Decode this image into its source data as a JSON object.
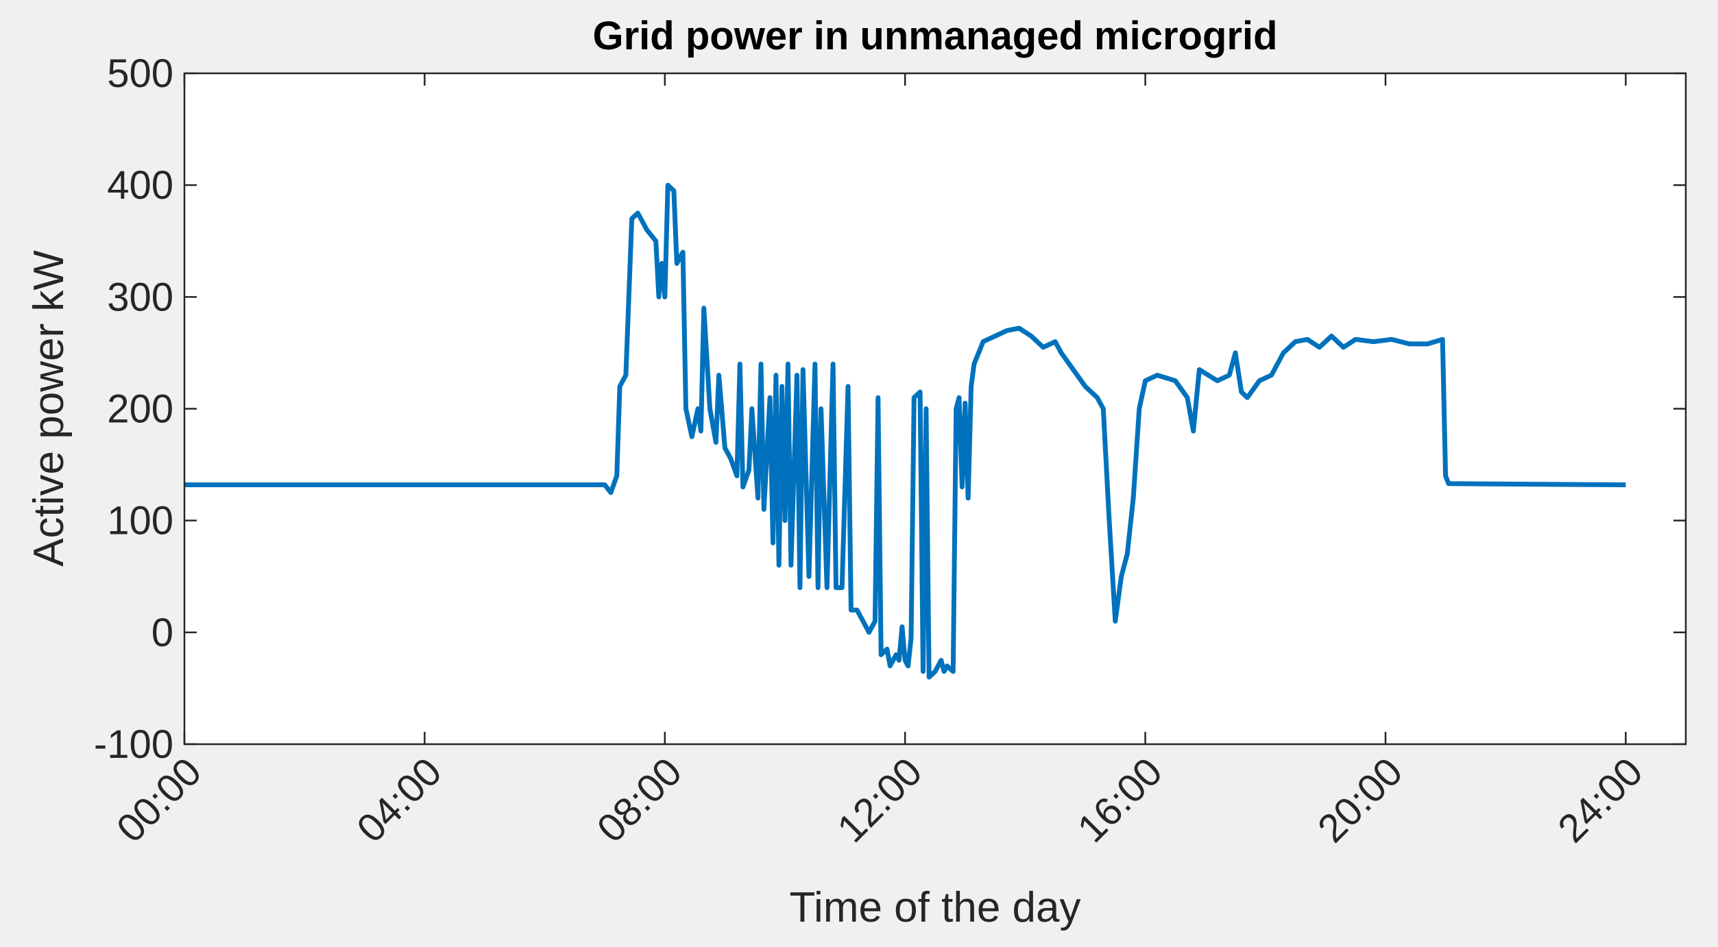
{
  "chart_data": {
    "type": "line",
    "title": "Grid power in unmanaged microgrid",
    "xlabel": "Time of the day",
    "ylabel": "Active power kW",
    "color": "#0072bd",
    "xlim": [
      0,
      25
    ],
    "ylim": [
      -100,
      500
    ],
    "xticks": [
      {
        "value": 0,
        "label": "00:00"
      },
      {
        "value": 4,
        "label": "04:00"
      },
      {
        "value": 8,
        "label": "08:00"
      },
      {
        "value": 12,
        "label": "12:00"
      },
      {
        "value": 16,
        "label": "16:00"
      },
      {
        "value": 20,
        "label": "20:00"
      },
      {
        "value": 24,
        "label": "24:00"
      }
    ],
    "yticks": [
      -100,
      0,
      100,
      200,
      300,
      400,
      500
    ],
    "x": [
      0,
      7.0,
      7.1,
      7.2,
      7.25,
      7.35,
      7.45,
      7.55,
      7.7,
      7.85,
      7.9,
      7.95,
      8.0,
      8.05,
      8.15,
      8.2,
      8.3,
      8.35,
      8.45,
      8.55,
      8.6,
      8.65,
      8.75,
      8.85,
      8.9,
      9.0,
      9.1,
      9.2,
      9.25,
      9.3,
      9.4,
      9.45,
      9.55,
      9.6,
      9.65,
      9.75,
      9.8,
      9.85,
      9.9,
      9.95,
      10.0,
      10.05,
      10.1,
      10.2,
      10.25,
      10.3,
      10.4,
      10.5,
      10.55,
      10.6,
      10.7,
      10.8,
      10.85,
      10.95,
      11.05,
      11.1,
      11.2,
      11.3,
      11.4,
      11.5,
      11.55,
      11.6,
      11.7,
      11.75,
      11.85,
      11.9,
      11.95,
      12.0,
      12.05,
      12.1,
      12.15,
      12.25,
      12.3,
      12.35,
      12.4,
      12.5,
      12.55,
      12.6,
      12.65,
      12.7,
      12.8,
      12.85,
      12.9,
      12.95,
      13.0,
      13.05,
      13.1,
      13.15,
      13.3,
      13.5,
      13.7,
      13.9,
      14.1,
      14.3,
      14.5,
      14.6,
      14.8,
      15.0,
      15.2,
      15.3,
      15.4,
      15.5,
      15.6,
      15.7,
      15.8,
      15.9,
      16.0,
      16.2,
      16.5,
      16.7,
      16.8,
      16.9,
      17.2,
      17.4,
      17.5,
      17.6,
      17.7,
      17.9,
      18.1,
      18.3,
      18.5,
      18.7,
      18.9,
      19.1,
      19.3,
      19.5,
      19.8,
      20.1,
      20.4,
      20.7,
      20.95,
      21.0,
      21.05,
      24.0
    ],
    "values": [
      132,
      132,
      125,
      140,
      220,
      230,
      370,
      375,
      360,
      350,
      300,
      330,
      300,
      400,
      395,
      330,
      340,
      200,
      175,
      200,
      180,
      290,
      200,
      170,
      230,
      165,
      155,
      140,
      240,
      130,
      145,
      200,
      120,
      240,
      110,
      210,
      80,
      230,
      60,
      220,
      100,
      240,
      60,
      230,
      40,
      235,
      50,
      240,
      40,
      200,
      40,
      240,
      40,
      40,
      220,
      20,
      20,
      10,
      0,
      10,
      210,
      -20,
      -15,
      -30,
      -20,
      -25,
      5,
      -25,
      -30,
      -5,
      210,
      215,
      -35,
      200,
      -40,
      -35,
      -30,
      -25,
      -35,
      -30,
      -35,
      200,
      210,
      130,
      205,
      120,
      220,
      240,
      260,
      265,
      270,
      272,
      265,
      255,
      260,
      250,
      235,
      220,
      210,
      200,
      100,
      10,
      50,
      70,
      120,
      200,
      225,
      230,
      225,
      210,
      180,
      235,
      225,
      230,
      250,
      215,
      210,
      225,
      230,
      250,
      260,
      262,
      255,
      265,
      255,
      262,
      260,
      262,
      258,
      258,
      262,
      140,
      133,
      132
    ]
  }
}
